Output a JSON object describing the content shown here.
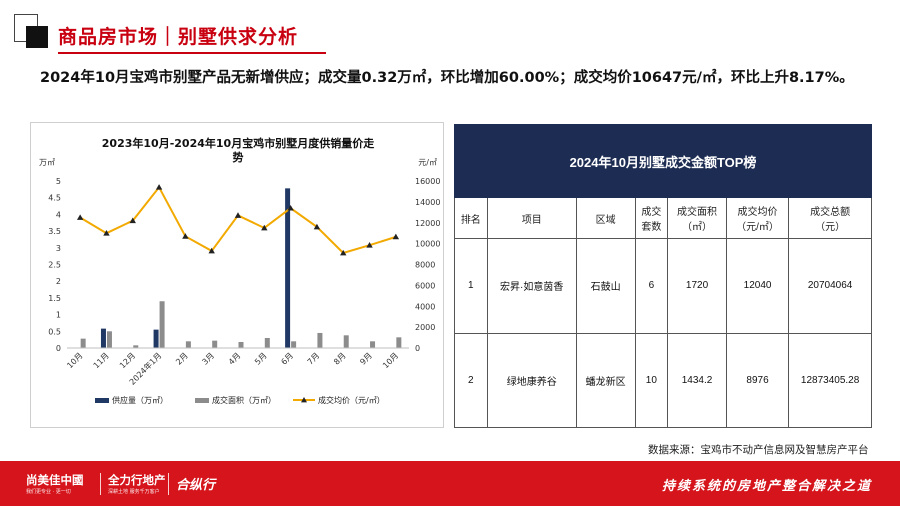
{
  "header": {
    "title": "商品房市场｜别墅供求分析"
  },
  "summary": "2024年10月宝鸡市别墅产品无新增供应；成交量0.32万㎡，环比增加60.00%；成交均价10647元/㎡，环比上升8.17%。",
  "chart_data": {
    "type": "bar+line",
    "title": "2023年10月-2024年10月宝鸡市别墅月度供销量价走势",
    "y_left_unit": "万㎡",
    "y_right_unit": "元/㎡",
    "categories": [
      "10月",
      "11月",
      "12月",
      "2024年1月",
      "2月",
      "3月",
      "4月",
      "5月",
      "6月",
      "7月",
      "8月",
      "9月",
      "10月"
    ],
    "ylim_left": [
      0,
      5
    ],
    "yticks_left": [
      "0",
      "0.5",
      "1",
      "1.5",
      "2",
      "2.5",
      "3",
      "3.5",
      "4",
      "4.5",
      "5"
    ],
    "ylim_right": [
      0,
      16000
    ],
    "yticks_right": [
      "0",
      "2000",
      "4000",
      "6000",
      "8000",
      "10000",
      "12000",
      "14000",
      "16000"
    ],
    "series": [
      {
        "name": "供应量（万㎡）",
        "type": "bar",
        "color": "#203864",
        "values": [
          0,
          0.58,
          0,
          0.55,
          0,
          0,
          0,
          0,
          4.78,
          0,
          0,
          0,
          0
        ]
      },
      {
        "name": "成交面积（万㎡）",
        "type": "bar",
        "color": "#8c8c8c",
        "values": [
          0.28,
          0.5,
          0.08,
          1.4,
          0.2,
          0.22,
          0.18,
          0.3,
          0.2,
          0.45,
          0.38,
          0.2,
          0.32
        ]
      },
      {
        "name": "成交均价（元/㎡）",
        "type": "line",
        "color": "#f2a900",
        "values": [
          12500,
          11000,
          12200,
          15400,
          10700,
          9300,
          12700,
          11500,
          13400,
          11600,
          9100,
          9850,
          10647
        ]
      }
    ],
    "legend_position": "bottom"
  },
  "table": {
    "title": "2024年10月别墅成交金额TOP榜",
    "headers": [
      "排名",
      "项目",
      "区域",
      "成交\n套数",
      "成交面积\n（㎡）",
      "成交均价\n（元/㎡）",
      "成交总额\n（元）"
    ],
    "rows": [
      [
        "1",
        "宏昇·如意茵香",
        "石鼓山",
        "6",
        "1720",
        "12040",
        "20704064"
      ],
      [
        "2",
        "绿地康养谷",
        "蟠龙新区",
        "10",
        "1434.2",
        "8976",
        "12873405.28"
      ]
    ]
  },
  "source": "数据来源：宝鸡市不动产信息网及智慧房产平台",
  "footer": {
    "logo1": "尚美佳中國",
    "logo1_sub": "我们更专业 · 更一切",
    "logo2": "全力行地产",
    "logo2_sub": "深耕土地 服务千万客户",
    "logo3": "合纵行",
    "slogan": "持续系统的房地产整合解决之道"
  },
  "colors": {
    "brand_red": "#c80010",
    "footer_red": "#d5141c",
    "table_header": "#1d2c52"
  }
}
